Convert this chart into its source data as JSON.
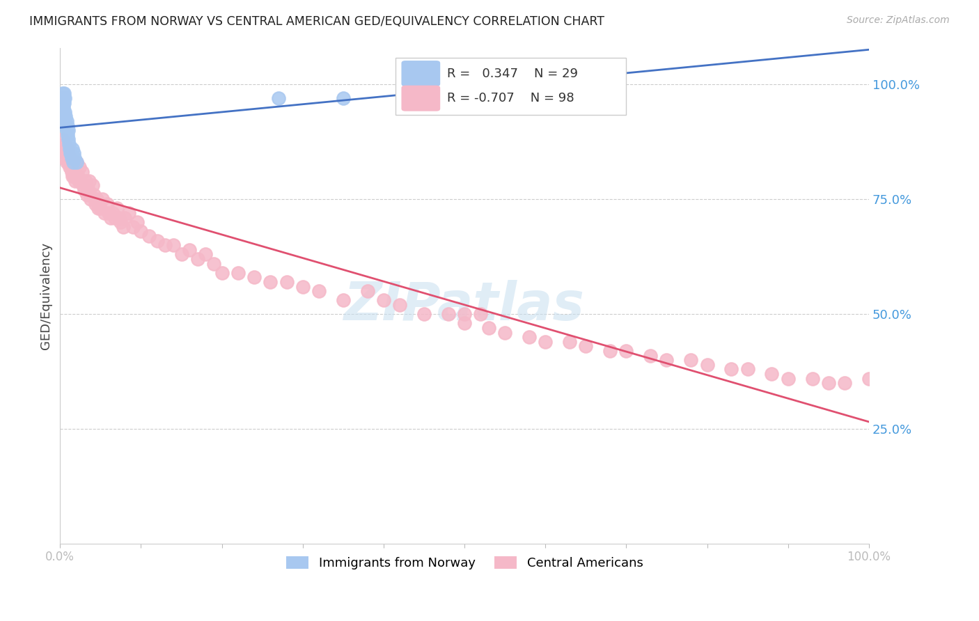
{
  "title": "IMMIGRANTS FROM NORWAY VS CENTRAL AMERICAN GED/EQUIVALENCY CORRELATION CHART",
  "source": "Source: ZipAtlas.com",
  "ylabel": "GED/Equivalency",
  "norway_R": 0.347,
  "norway_N": 29,
  "central_R": -0.707,
  "central_N": 98,
  "norway_color": "#a8c8f0",
  "central_color": "#f5b8c8",
  "norway_line_color": "#4472c4",
  "central_line_color": "#e05070",
  "watermark": "ZIPatlas",
  "ytick_labels": [
    "100.0%",
    "75.0%",
    "50.0%",
    "25.0%"
  ],
  "ytick_values": [
    1.0,
    0.75,
    0.5,
    0.25
  ],
  "norway_x": [
    0.002,
    0.003,
    0.003,
    0.004,
    0.004,
    0.005,
    0.005,
    0.005,
    0.006,
    0.006,
    0.007,
    0.007,
    0.008,
    0.008,
    0.009,
    0.009,
    0.01,
    0.01,
    0.011,
    0.012,
    0.013,
    0.014,
    0.015,
    0.016,
    0.017,
    0.018,
    0.02,
    0.27,
    0.35
  ],
  "norway_y": [
    0.97,
    0.96,
    0.98,
    0.95,
    0.97,
    0.93,
    0.96,
    0.98,
    0.94,
    0.97,
    0.91,
    0.93,
    0.9,
    0.92,
    0.89,
    0.91,
    0.88,
    0.9,
    0.87,
    0.86,
    0.85,
    0.84,
    0.86,
    0.83,
    0.85,
    0.84,
    0.83,
    0.97,
    0.97
  ],
  "central_x": [
    0.003,
    0.004,
    0.005,
    0.006,
    0.007,
    0.008,
    0.009,
    0.01,
    0.011,
    0.012,
    0.013,
    0.014,
    0.015,
    0.016,
    0.017,
    0.018,
    0.019,
    0.02,
    0.022,
    0.023,
    0.024,
    0.025,
    0.027,
    0.028,
    0.03,
    0.032,
    0.033,
    0.035,
    0.036,
    0.037,
    0.038,
    0.04,
    0.042,
    0.044,
    0.045,
    0.047,
    0.05,
    0.052,
    0.055,
    0.058,
    0.06,
    0.063,
    0.065,
    0.068,
    0.07,
    0.073,
    0.075,
    0.078,
    0.08,
    0.085,
    0.09,
    0.095,
    0.1,
    0.11,
    0.12,
    0.13,
    0.14,
    0.15,
    0.16,
    0.17,
    0.18,
    0.19,
    0.2,
    0.22,
    0.24,
    0.26,
    0.28,
    0.3,
    0.32,
    0.35,
    0.38,
    0.4,
    0.42,
    0.45,
    0.48,
    0.5,
    0.53,
    0.55,
    0.58,
    0.6,
    0.63,
    0.65,
    0.68,
    0.7,
    0.73,
    0.75,
    0.78,
    0.8,
    0.83,
    0.85,
    0.88,
    0.9,
    0.93,
    0.95,
    0.97,
    0.5,
    0.52,
    1.0
  ],
  "central_y": [
    0.88,
    0.86,
    0.84,
    0.87,
    0.85,
    0.83,
    0.86,
    0.84,
    0.83,
    0.82,
    0.84,
    0.81,
    0.8,
    0.82,
    0.8,
    0.81,
    0.79,
    0.83,
    0.8,
    0.79,
    0.82,
    0.79,
    0.81,
    0.78,
    0.77,
    0.79,
    0.76,
    0.77,
    0.79,
    0.76,
    0.75,
    0.78,
    0.76,
    0.74,
    0.75,
    0.73,
    0.73,
    0.75,
    0.72,
    0.74,
    0.72,
    0.71,
    0.72,
    0.71,
    0.73,
    0.71,
    0.7,
    0.69,
    0.71,
    0.72,
    0.69,
    0.7,
    0.68,
    0.67,
    0.66,
    0.65,
    0.65,
    0.63,
    0.64,
    0.62,
    0.63,
    0.61,
    0.59,
    0.59,
    0.58,
    0.57,
    0.57,
    0.56,
    0.55,
    0.53,
    0.55,
    0.53,
    0.52,
    0.5,
    0.5,
    0.48,
    0.47,
    0.46,
    0.45,
    0.44,
    0.44,
    0.43,
    0.42,
    0.42,
    0.41,
    0.4,
    0.4,
    0.39,
    0.38,
    0.38,
    0.37,
    0.36,
    0.36,
    0.35,
    0.35,
    0.5,
    0.5,
    0.36
  ]
}
